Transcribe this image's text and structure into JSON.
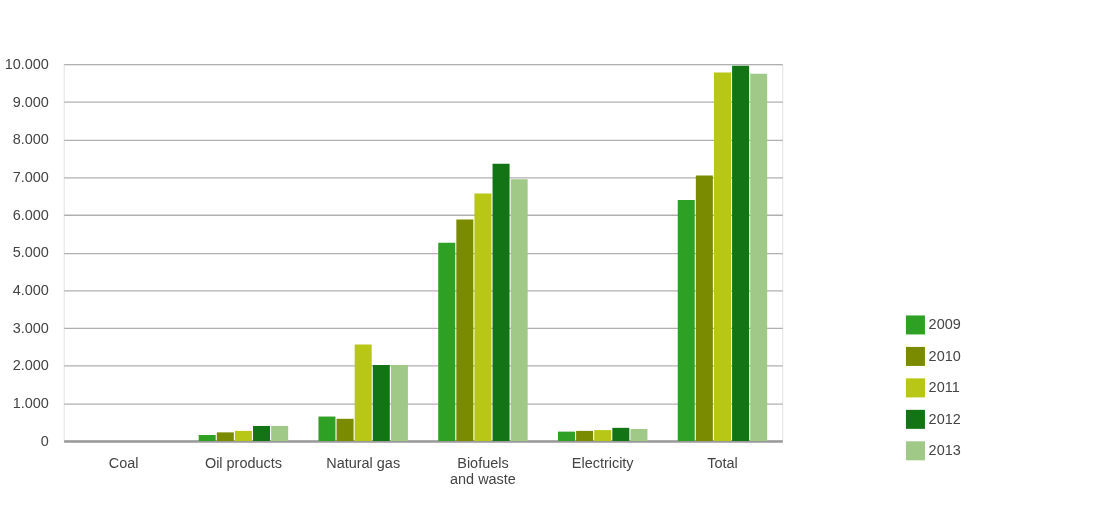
{
  "chart_data": {
    "type": "bar",
    "categories": [
      "Coal",
      "Oil products",
      "Natural gas",
      "Biofuels and waste",
      "Electricity",
      "Total"
    ],
    "series": [
      {
        "name": "2009",
        "color": "#2ea124",
        "values": [
          0,
          160,
          650,
          5260,
          250,
          6400
        ]
      },
      {
        "name": "2010",
        "color": "#7b8b01",
        "values": [
          0,
          230,
          590,
          5880,
          270,
          7050
        ]
      },
      {
        "name": "2011",
        "color": "#b8c615",
        "values": [
          0,
          270,
          2560,
          6570,
          290,
          9780
        ]
      },
      {
        "name": "2012",
        "color": "#127415",
        "values": [
          0,
          400,
          2020,
          7360,
          350,
          9960
        ]
      },
      {
        "name": "2013",
        "color": "#a0c886",
        "values": [
          0,
          400,
          2020,
          6950,
          320,
          9750
        ]
      }
    ],
    "ylim": [
      0,
      10000
    ],
    "yticks": [
      {
        "value": 0,
        "label": "0"
      },
      {
        "value": 1000,
        "label": "1.000"
      },
      {
        "value": 2000,
        "label": "2.000"
      },
      {
        "value": 3000,
        "label": "3.000"
      },
      {
        "value": 4000,
        "label": "4.000"
      },
      {
        "value": 5000,
        "label": "5.000"
      },
      {
        "value": 6000,
        "label": "6.000"
      },
      {
        "value": 7000,
        "label": "7.000"
      },
      {
        "value": 8000,
        "label": "8.000"
      },
      {
        "value": 9000,
        "label": "9.000"
      },
      {
        "value": 10000,
        "label": "10.000"
      }
    ],
    "grid": "y",
    "legend": "bottom right"
  }
}
